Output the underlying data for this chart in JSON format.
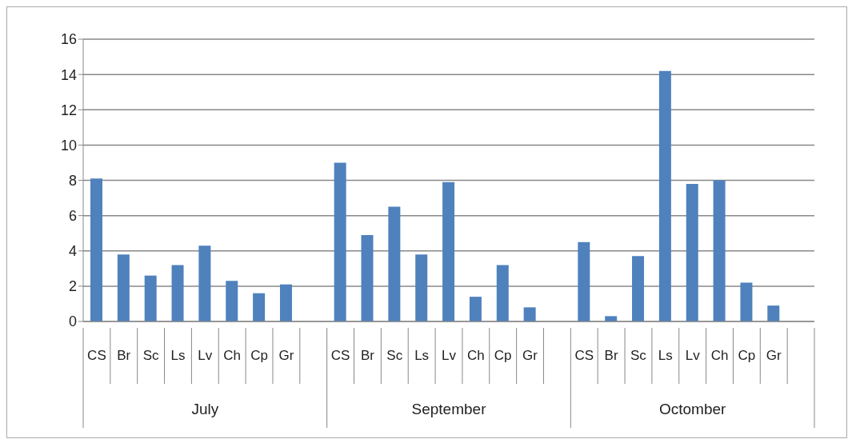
{
  "chart_data": {
    "type": "bar",
    "categories": [
      "CS",
      "Br",
      "Sc",
      "Ls",
      "Lv",
      "Ch",
      "Cp",
      "Gr",
      null,
      "CS",
      "Br",
      "Sc",
      "Ls",
      "Lv",
      "Ch",
      "Cp",
      "Gr",
      null,
      "CS",
      "Br",
      "Sc",
      "Ls",
      "Lv",
      "Ch",
      "Cp",
      "Gr",
      null
    ],
    "values": [
      8.1,
      3.8,
      2.6,
      3.2,
      4.3,
      2.3,
      1.6,
      2.1,
      null,
      9.0,
      4.9,
      6.5,
      3.8,
      7.9,
      1.4,
      3.2,
      0.8,
      null,
      4.5,
      0.3,
      3.7,
      14.2,
      7.8,
      8.0,
      2.2,
      0.9,
      null
    ],
    "color": "#4f81bd",
    "ylim": [
      0,
      16
    ],
    "yticks": [
      0,
      2,
      4,
      6,
      8,
      10,
      12,
      14,
      16
    ],
    "grid": "y",
    "annotations": [
      "July",
      "September",
      "Octomber"
    ]
  }
}
